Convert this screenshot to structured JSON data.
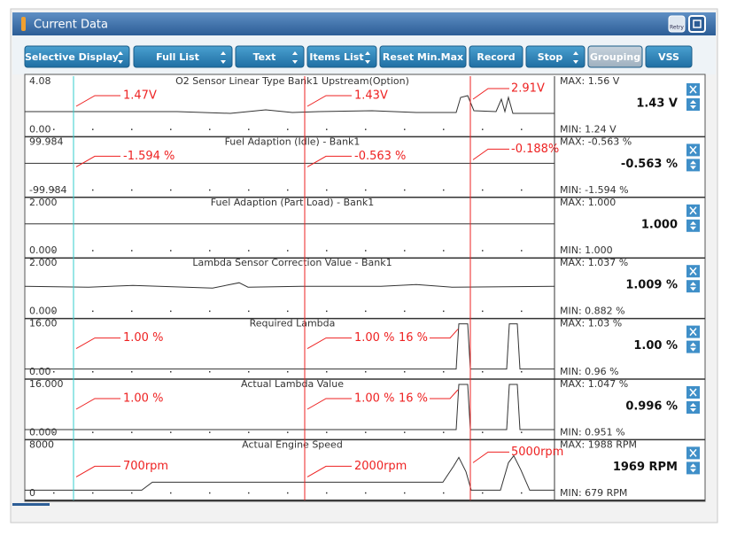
{
  "window": {
    "title": "Current Data",
    "retry": "Retry"
  },
  "toolbar": [
    "Selective Display",
    "Full List",
    "Text",
    "Items List",
    "Reset Min.Max",
    "Record",
    "Stop",
    "Grouping",
    "VSS"
  ],
  "panels": [
    {
      "name": "O2 Sensor Linear Type Bank1 Upstream(Option)",
      "top": "4.08",
      "bottom": "0.00",
      "max": "MAX: 1.56 V",
      "value": "1.43 V",
      "min": "MIN: 1.24 V",
      "annotations": [
        "1.47V",
        "1.43V",
        "2.91V"
      ]
    },
    {
      "name": "Fuel Adaption (Idle) - Bank1",
      "top": "99.984",
      "bottom": "-99.984",
      "max": "MAX: -0.563 %",
      "value": "-0.563 %",
      "min": "MIN: -1.594 %",
      "annotations": [
        "-1.594 %",
        "-0.563 %",
        "-0.188%"
      ]
    },
    {
      "name": "Fuel Adaption (Part Load) - Bank1",
      "top": "2.000",
      "bottom": "0.000",
      "max": "MAX: 1.000",
      "value": "1.000",
      "min": "MIN: 1.000",
      "annotations": []
    },
    {
      "name": "Lambda Sensor Correction Value - Bank1",
      "top": "2.000",
      "bottom": "0.000",
      "max": "MAX: 1.037 %",
      "value": "1.009 %",
      "min": "MIN: 0.882 %",
      "annotations": []
    },
    {
      "name": "Required Lambda",
      "top": "16.00",
      "bottom": "0.00",
      "max": "MAX: 1.03 %",
      "value": "1.00 %",
      "min": "MIN: 0.96 %",
      "annotations": [
        "1.00 %",
        "1.00 %",
        "16 %"
      ]
    },
    {
      "name": "Actual Lambda Value",
      "top": "16.000",
      "bottom": "0.000",
      "max": "MAX: 1.047 %",
      "value": "0.996 %",
      "min": "MIN: 0.951 %",
      "annotations": [
        "1.00 %",
        "1.00 %",
        "16 %"
      ]
    },
    {
      "name": "Actual Engine Speed",
      "top": "8000",
      "bottom": "0",
      "max": "MAX: 1988 RPM",
      "value": "1969 RPM",
      "min": "MIN: 679 RPM",
      "annotations": [
        "700rpm",
        "2000rpm",
        "5000rpm"
      ]
    }
  ]
}
